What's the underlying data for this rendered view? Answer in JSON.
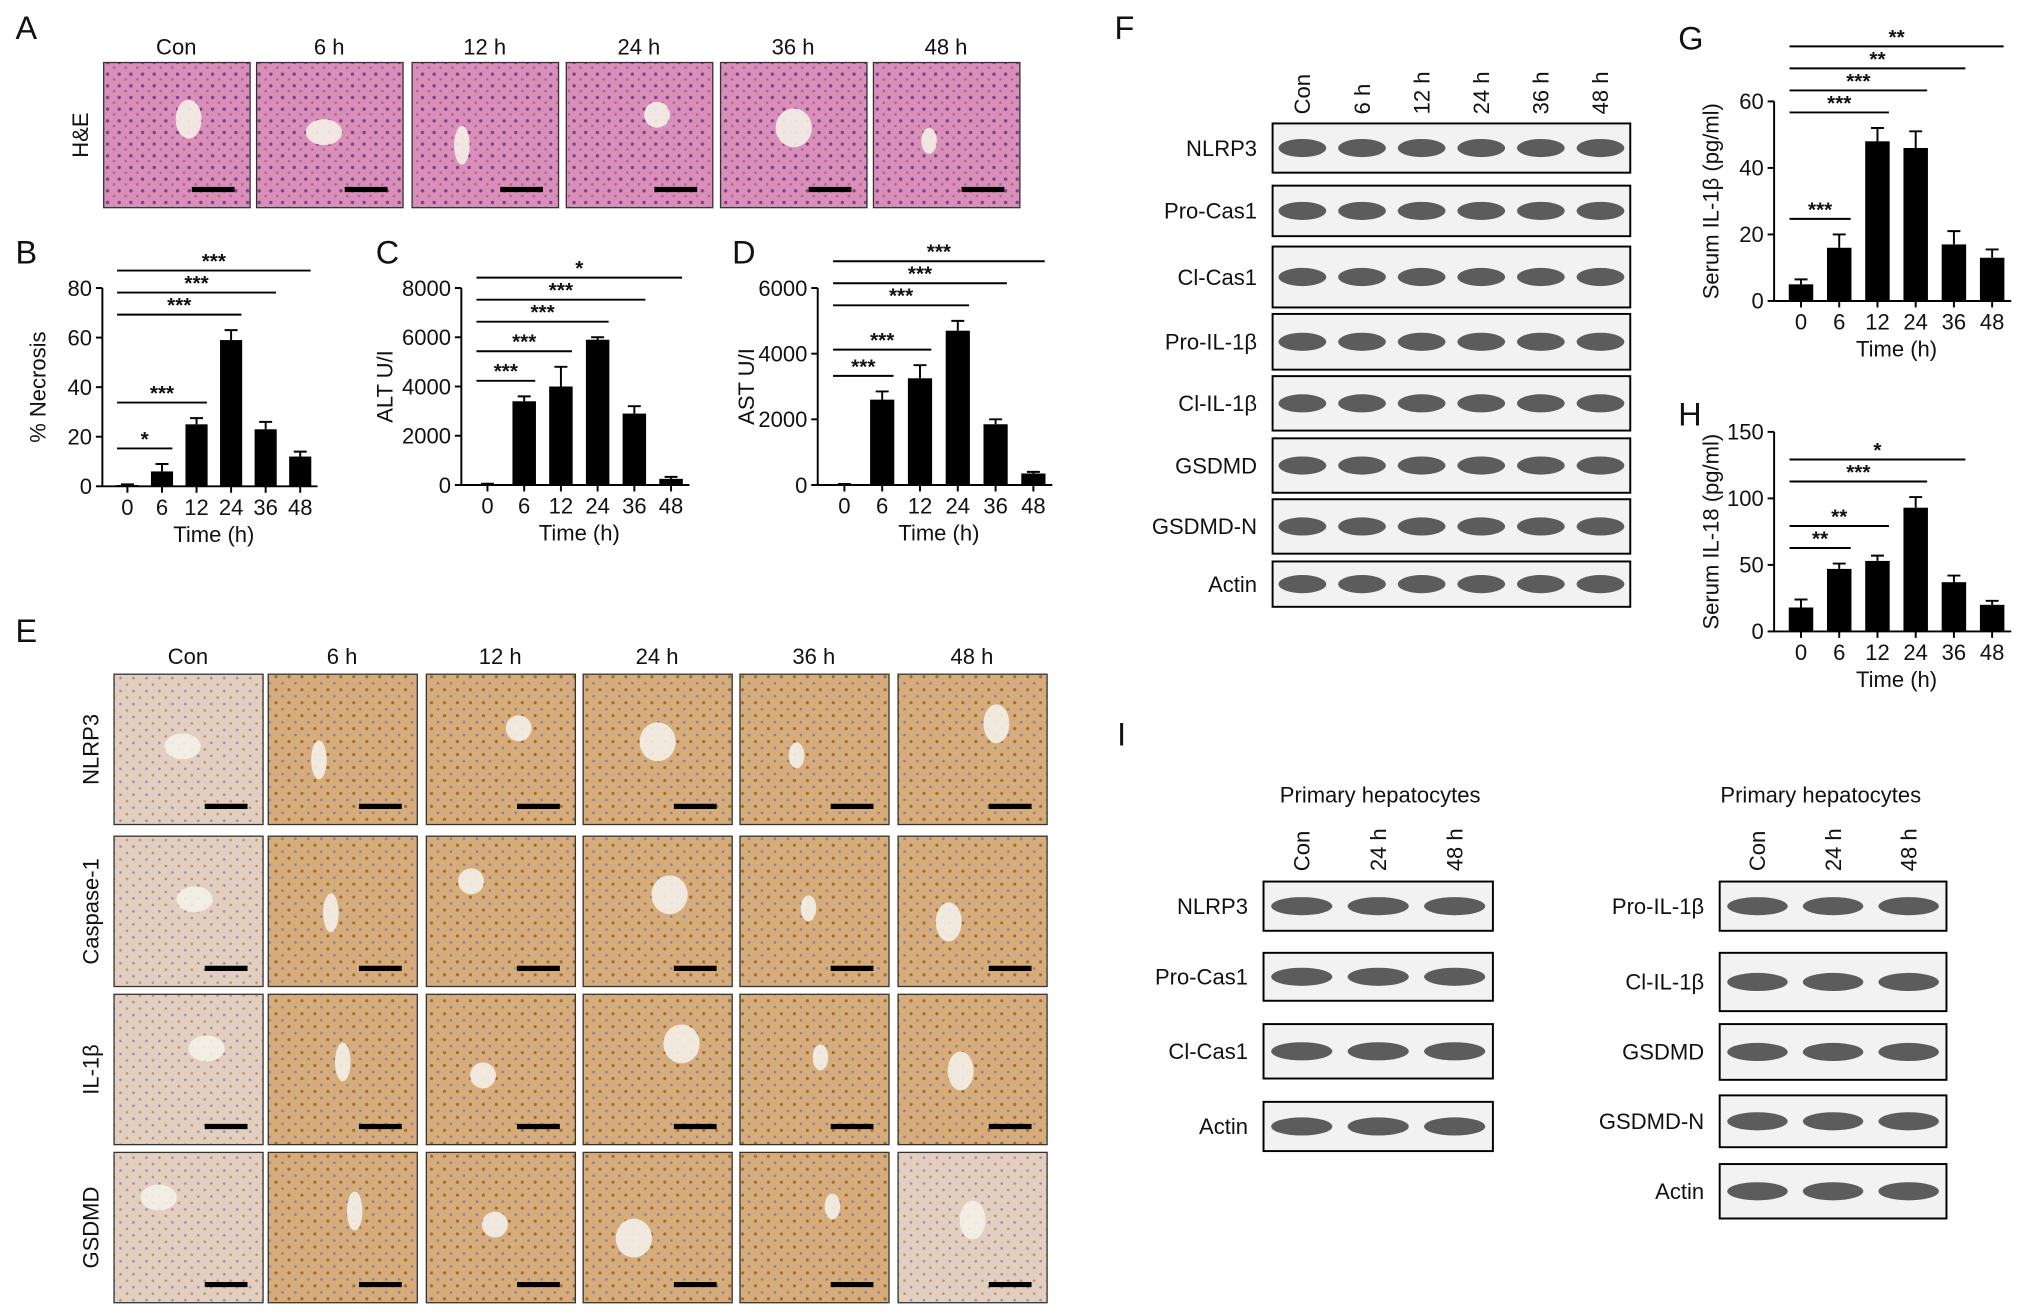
{
  "panels": {
    "A": {
      "letter": "A",
      "row": "H&E",
      "columns": [
        "Con",
        "6 h",
        "12 h",
        "24 h",
        "36 h",
        "48 h"
      ]
    },
    "E": {
      "letter": "E",
      "columns": [
        "Con",
        "6 h",
        "12 h",
        "24 h",
        "36 h",
        "48 h"
      ],
      "rows": [
        "NLRP3",
        "Caspase-1",
        "IL-1β",
        "GSDMD"
      ]
    },
    "F": {
      "letter": "F",
      "lanes": [
        "Con",
        "6 h",
        "12 h",
        "24 h",
        "36 h",
        "48 h"
      ],
      "rows": [
        "NLRP3",
        "Pro-Cas1",
        "Cl-Cas1",
        "Pro-IL-1β",
        "Cl-IL-1β",
        "GSDMD",
        "GSDMD-N",
        "Actin"
      ]
    },
    "I": {
      "letter": "I",
      "blots": [
        {
          "title": "Primary hepatocytes",
          "lanes": [
            "Con",
            "24 h",
            "48 h"
          ],
          "rows": [
            "NLRP3",
            "Pro-Cas1",
            "Cl-Cas1",
            "Actin"
          ]
        },
        {
          "title": "Primary hepatocytes",
          "lanes": [
            "Con",
            "24 h",
            "48 h"
          ],
          "rows": [
            "Pro-IL-1β",
            "Cl-IL-1β",
            "GSDMD",
            "GSDMD-N",
            "Actin"
          ]
        }
      ]
    }
  },
  "chart_data": [
    {
      "type": "bar",
      "panel": "B",
      "ylabel": "% Necrosis",
      "xlabel": "Time (h)",
      "categories": [
        "0",
        "6",
        "12",
        "24",
        "36",
        "48"
      ],
      "values": [
        0.5,
        6,
        25,
        59,
        23,
        12
      ],
      "errors": [
        0.3,
        3,
        2.5,
        4,
        3,
        2
      ],
      "color": "#000000",
      "ylim": [
        0,
        80
      ],
      "yticks": [
        0,
        20,
        40,
        60,
        80
      ],
      "significance": [
        {
          "label": "*",
          "from": 0,
          "to": 1
        },
        {
          "label": "***",
          "from": 0,
          "to": 2
        },
        {
          "label": "***",
          "from": 0,
          "to": 3
        },
        {
          "label": "***",
          "from": 0,
          "to": 4
        },
        {
          "label": "***",
          "from": 0,
          "to": 5
        }
      ]
    },
    {
      "type": "bar",
      "panel": "C",
      "ylabel": "ALT U/I",
      "xlabel": "Time (h)",
      "categories": [
        "0",
        "6",
        "12",
        "24",
        "36",
        "48"
      ],
      "values": [
        30,
        3400,
        4000,
        5900,
        2900,
        250
      ],
      "errors": [
        20,
        200,
        800,
        100,
        300,
        80
      ],
      "color": "#000000",
      "ylim": [
        0,
        8000
      ],
      "yticks": [
        0,
        2000,
        4000,
        6000,
        8000
      ],
      "significance": [
        {
          "label": "***",
          "from": 0,
          "to": 1
        },
        {
          "label": "***",
          "from": 0,
          "to": 2
        },
        {
          "label": "***",
          "from": 0,
          "to": 3
        },
        {
          "label": "***",
          "from": 0,
          "to": 4
        },
        {
          "label": "*",
          "from": 0,
          "to": 5
        }
      ]
    },
    {
      "type": "bar",
      "panel": "D",
      "ylabel": "AST U/I",
      "xlabel": "Time (h)",
      "categories": [
        "0",
        "6",
        "12",
        "24",
        "36",
        "48"
      ],
      "values": [
        20,
        2600,
        3250,
        4700,
        1850,
        350
      ],
      "errors": [
        10,
        250,
        400,
        300,
        150,
        50
      ],
      "color": "#000000",
      "ylim": [
        0,
        6000
      ],
      "yticks": [
        0,
        2000,
        4000,
        6000
      ],
      "significance": [
        {
          "label": "***",
          "from": 0,
          "to": 1
        },
        {
          "label": "***",
          "from": 0,
          "to": 2
        },
        {
          "label": "***",
          "from": 0,
          "to": 3
        },
        {
          "label": "***",
          "from": 0,
          "to": 4
        },
        {
          "label": "***",
          "from": 0,
          "to": 5
        }
      ]
    },
    {
      "type": "bar",
      "panel": "G",
      "ylabel": "Serum IL-1β (pg/ml)",
      "xlabel": "Time (h)",
      "categories": [
        "0",
        "6",
        "12",
        "24",
        "36",
        "48"
      ],
      "values": [
        5,
        16,
        48,
        46,
        17,
        13
      ],
      "errors": [
        1.5,
        4,
        4,
        5,
        4,
        2.5
      ],
      "color": "#000000",
      "ylim": [
        0,
        60
      ],
      "yticks": [
        0,
        20,
        40,
        60
      ],
      "significance": [
        {
          "label": "***",
          "from": 0,
          "to": 1
        },
        {
          "label": "***",
          "from": 0,
          "to": 2
        },
        {
          "label": "***",
          "from": 0,
          "to": 3
        },
        {
          "label": "**",
          "from": 0,
          "to": 4
        },
        {
          "label": "**",
          "from": 0,
          "to": 5
        }
      ]
    },
    {
      "type": "bar",
      "panel": "H",
      "ylabel": "Serum IL-18 (pg/ml)",
      "xlabel": "Time (h)",
      "categories": [
        "0",
        "6",
        "12",
        "24",
        "36",
        "48"
      ],
      "values": [
        18,
        47,
        53,
        93,
        37,
        20
      ],
      "errors": [
        6,
        4,
        4,
        8,
        5,
        3
      ],
      "color": "#000000",
      "ylim": [
        0,
        150
      ],
      "yticks": [
        0,
        50,
        100,
        150
      ],
      "significance": [
        {
          "label": "**",
          "from": 0,
          "to": 1
        },
        {
          "label": "**",
          "from": 0,
          "to": 2
        },
        {
          "label": "***",
          "from": 0,
          "to": 3
        },
        {
          "label": "*",
          "from": 0,
          "to": 4
        }
      ]
    }
  ]
}
